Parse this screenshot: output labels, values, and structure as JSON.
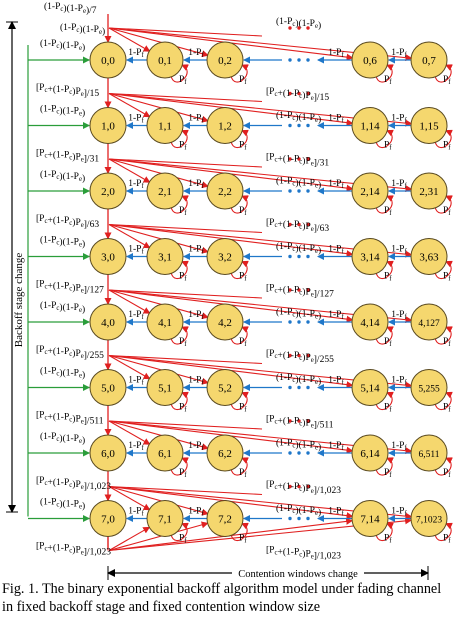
{
  "rows": [
    {
      "nodes": [
        "0,0",
        "0,1",
        "0,2",
        "0,6",
        "0,7"
      ],
      "prob_label": "[P_c+(1-P_c)P_e]/15"
    },
    {
      "nodes": [
        "1,0",
        "1,1",
        "1,2",
        "1,14",
        "1,15"
      ],
      "prob_label": "[P_c+(1-P_c)P_e]/31"
    },
    {
      "nodes": [
        "2,0",
        "2,1",
        "2,2",
        "2,14",
        "2,31"
      ],
      "prob_label": "[P_c+(1-P_c)P_e]/63"
    },
    {
      "nodes": [
        "3,0",
        "3,1",
        "3,2",
        "3,14",
        "3,63"
      ],
      "prob_label": "[P_c+(1-P_c)P_e]/127"
    },
    {
      "nodes": [
        "4,0",
        "4,1",
        "4,2",
        "4,14",
        "4,127"
      ],
      "prob_label": "[P_c+(1-P_c)P_e]/255"
    },
    {
      "nodes": [
        "5,0",
        "5,1",
        "5,2",
        "5,14",
        "5,255"
      ],
      "prob_label": "[P_c+(1-P_c)P_e]/511"
    },
    {
      "nodes": [
        "6,0",
        "6,1",
        "6,2",
        "6,14",
        "6,511"
      ],
      "prob_label": "[P_c+(1-P_c)P_e]/1,023"
    },
    {
      "nodes": [
        "7,0",
        "7,1",
        "7,2",
        "7,14",
        "7,1023"
      ],
      "prob_label": "[P_c+(1-P_c)P_e]/1,023"
    }
  ],
  "left_prob_labels": [
    "[P_c+(1-P_c)P_e]/15",
    "[P_c+(1-P_c)P_e]/31",
    "[P_c+(1-P_c)P_e]/63",
    "[P_c+(1-P_c)P_e]/127",
    "[P_c+(1-P_c)P_e]/255",
    "[P_c+(1-P_c)P_e]/511",
    "[P_c+(1-P_c)P_e]/1,023",
    "[P_c+(1-P_c)P_e]/1,023"
  ],
  "top_label": "(1-P_c)(1-P_e)/7",
  "top_label_right": "(1-P_c)(1-P_e)",
  "success_label": "(1-P_c)(1-P_e)",
  "freeze_label": "1-P_f",
  "self_loop_label": "P_f",
  "ellipsis": "• • •",
  "y_axis_label": "Backoff stage change",
  "x_axis_label": "Contention windows change",
  "caption_line1": "Fig. 1. The binary exponential backoff algorithm model under fading channel",
  "caption_line2": "in fixed backoff stage and fixed contention window size",
  "colors": {
    "node_fill": "#f5d76e",
    "node_stroke": "#5a4a20",
    "red_arrow": "#e02020",
    "blue_arrow": "#1f77c9",
    "green_arrow": "#2a9d3a",
    "black": "#000000",
    "dots_red": "#e02020",
    "dots_blue": "#1f77c9"
  }
}
